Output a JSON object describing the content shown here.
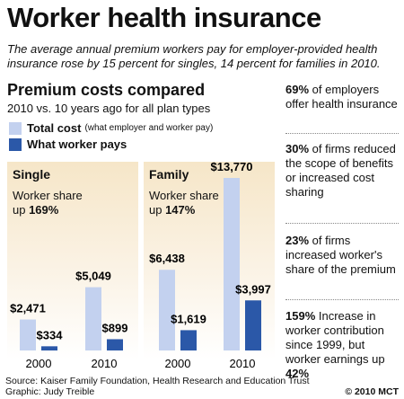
{
  "header": {
    "title": "Worker health insurance",
    "subtitle": "The average annual premium workers pay for employer-provided health insurance rose by 15 percent for singles, 14 percent for families in 2010."
  },
  "chart_data": {
    "type": "bar",
    "title": "Premium costs compared",
    "subtitle": "2010 vs. 10 years ago for all plan types",
    "groups": [
      {
        "name": "Single",
        "annotation_lead": "Worker share up ",
        "annotation_value": "169%"
      },
      {
        "name": "Family",
        "annotation_lead": "Worker share up ",
        "annotation_value": "147%"
      }
    ],
    "categories": [
      "2000",
      "2010",
      "2000",
      "2010"
    ],
    "series": [
      {
        "name": "Total cost",
        "note": "(what employer and worker pay)",
        "color": "#c3d1ef",
        "values": [
          2471,
          5049,
          6438,
          13770
        ],
        "value_labels": [
          "$2,471",
          "$5,049",
          "$6,438",
          "$13,770"
        ]
      },
      {
        "name": "What worker pays",
        "color": "#2b58a8",
        "values": [
          334,
          899,
          1619,
          3997
        ],
        "value_labels": [
          "$334",
          "$899",
          "$1,619",
          "$3,997"
        ]
      }
    ]
  },
  "facts": [
    {
      "highlight": "69%",
      "text": " of employers offer health insurance"
    },
    {
      "highlight": "30%",
      "text": " of firms reduced the scope of benefits or increased cost sharing"
    },
    {
      "highlight": "23%",
      "text": " of firms increased worker's share of the premium"
    },
    {
      "highlight": "159%",
      "text": " Increase in worker contribution since 1999, but worker earnings up ",
      "highlight2": "42%"
    }
  ],
  "footer": {
    "source": "Source: Kaiser Family Foundation, Health Research and Education Trust",
    "graphic": "Graphic: Judy Treible",
    "credit": "© 2010 MCT"
  }
}
